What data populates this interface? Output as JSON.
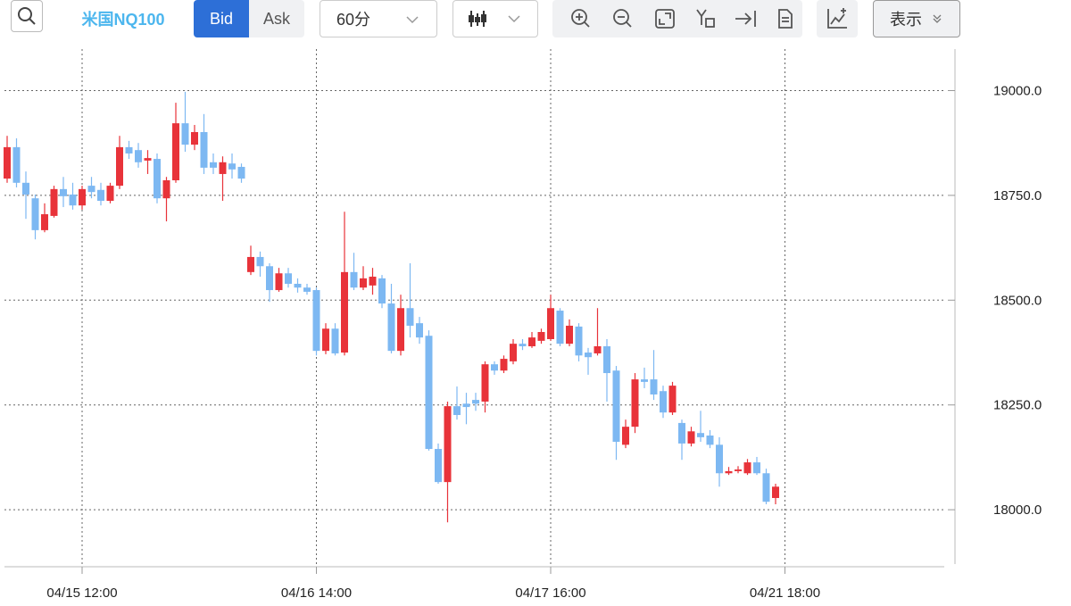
{
  "toolbar": {
    "symbol": "米国NQ100",
    "bid": "Bid",
    "ask": "Ask",
    "interval": "60分",
    "display": "表示"
  },
  "chart_data": {
    "type": "candlestick",
    "categories": [
      null,
      null,
      null,
      null,
      null,
      null,
      null,
      null,
      "04/15 12:00",
      null,
      null,
      null,
      null,
      null,
      null,
      null,
      null,
      null,
      null,
      null,
      null,
      null,
      null,
      null,
      null,
      null,
      null,
      null,
      null,
      null,
      null,
      null,
      null,
      "04/16 14:00",
      null,
      null,
      null,
      null,
      null,
      null,
      null,
      null,
      null,
      null,
      null,
      null,
      null,
      null,
      null,
      null,
      null,
      null,
      null,
      null,
      null,
      null,
      null,
      null,
      "04/17 16:00",
      null,
      null,
      null,
      null,
      null,
      null,
      null,
      null,
      null,
      null,
      null,
      null,
      null,
      null,
      null,
      null,
      null,
      null,
      null,
      null,
      null,
      null,
      null,
      null,
      "04/21 18:00"
    ],
    "open": [
      18790,
      18865,
      18780,
      18743,
      18667,
      18701,
      18765,
      18752,
      18726,
      18773,
      18763,
      18737,
      18773,
      18865,
      18858,
      18833,
      18837,
      18743,
      18786,
      18922,
      18871,
      18901,
      18829,
      18801,
      18826,
      18818,
      18567,
      18603,
      18581,
      18524,
      18564,
      18539,
      18530,
      18524,
      18379,
      18432,
      18375,
      18567,
      18530,
      18535,
      18552,
      18492,
      18379,
      18481,
      18445,
      18415,
      18145,
      18066,
      18247,
      18253,
      18262,
      18258,
      18347,
      18332,
      18354,
      18396,
      18390,
      18403,
      18407,
      18475,
      18396,
      18437,
      18375,
      18373,
      18390,
      18332,
      18155,
      18198,
      18311,
      18311,
      18283,
      18232,
      18207,
      18158,
      18183,
      18177,
      18155,
      18087,
      18092,
      18087,
      18113,
      18087,
      18028,
      null
    ],
    "high": [
      18892,
      18886,
      18807,
      18752,
      18731,
      18773,
      18794,
      18780,
      18773,
      18794,
      18780,
      18780,
      18892,
      18880,
      18875,
      18858,
      18850,
      18794,
      18971,
      18997,
      18918,
      18944,
      18850,
      18843,
      18850,
      18826,
      18630,
      18616,
      18588,
      18577,
      18577,
      18552,
      18539,
      18530,
      18445,
      18445,
      18711,
      18613,
      18581,
      18577,
      18560,
      18539,
      18513,
      18588,
      18460,
      18428,
      18158,
      18258,
      18294,
      18279,
      18279,
      18354,
      18354,
      18368,
      18407,
      18407,
      18424,
      18432,
      18513,
      18481,
      18454,
      18445,
      18386,
      18481,
      18407,
      18343,
      18215,
      18326,
      18339,
      18381,
      18296,
      18305,
      18215,
      18198,
      18236,
      18190,
      18173,
      18102,
      18104,
      18121,
      18126,
      18098,
      18062,
      null
    ],
    "low": [
      18780,
      18769,
      18694,
      18645,
      18662,
      18697,
      18722,
      18716,
      18716,
      18743,
      18726,
      18731,
      18765,
      18837,
      18816,
      18801,
      18731,
      18688,
      18780,
      18854,
      18858,
      18801,
      18801,
      18737,
      18790,
      18780,
      18560,
      18556,
      18496,
      18520,
      18530,
      18518,
      18513,
      18368,
      18371,
      18368,
      18368,
      18524,
      18524,
      18513,
      18481,
      18373,
      18368,
      18411,
      18396,
      18141,
      18062,
      17970,
      18215,
      18204,
      18236,
      18232,
      18322,
      18326,
      18347,
      18381,
      18386,
      18396,
      18403,
      18390,
      18390,
      18354,
      18322,
      18368,
      18258,
      18119,
      18147,
      18183,
      18290,
      18262,
      18219,
      18226,
      18119,
      18151,
      18162,
      18147,
      18055,
      18083,
      18087,
      18083,
      18083,
      18013,
      18013,
      null
    ],
    "close": [
      18865,
      18780,
      18752,
      18667,
      18705,
      18765,
      18748,
      18726,
      18765,
      18758,
      18737,
      18773,
      18865,
      18850,
      18829,
      18839,
      18743,
      18786,
      18922,
      18871,
      18901,
      18816,
      18816,
      18829,
      18812,
      18790,
      18603,
      18581,
      18524,
      18564,
      18539,
      18530,
      18520,
      18379,
      18432,
      18373,
      18567,
      18530,
      18552,
      18556,
      18492,
      18379,
      18481,
      18439,
      18411,
      18145,
      18066,
      18247,
      18226,
      18245,
      18253,
      18347,
      18332,
      18360,
      18396,
      18390,
      18411,
      18424,
      18481,
      18396,
      18439,
      18368,
      18364,
      18390,
      18326,
      18162,
      18198,
      18311,
      18305,
      18275,
      18232,
      18296,
      18158,
      18187,
      18173,
      18155,
      18087,
      18092,
      18096,
      18113,
      18087,
      18019,
      18055,
      null
    ],
    "up_color": "#e8333a",
    "down_color": "#7db8f2",
    "ylim": [
      17864,
      19099
    ],
    "yticks": [
      {
        "value": 18000,
        "label": "18000.0"
      },
      {
        "value": 18250,
        "label": "18250.0"
      },
      {
        "value": 18500,
        "label": "18500.0"
      },
      {
        "value": 18750,
        "label": "18750.0"
      },
      {
        "value": 19000,
        "label": "19000.0"
      }
    ],
    "grid": true
  }
}
